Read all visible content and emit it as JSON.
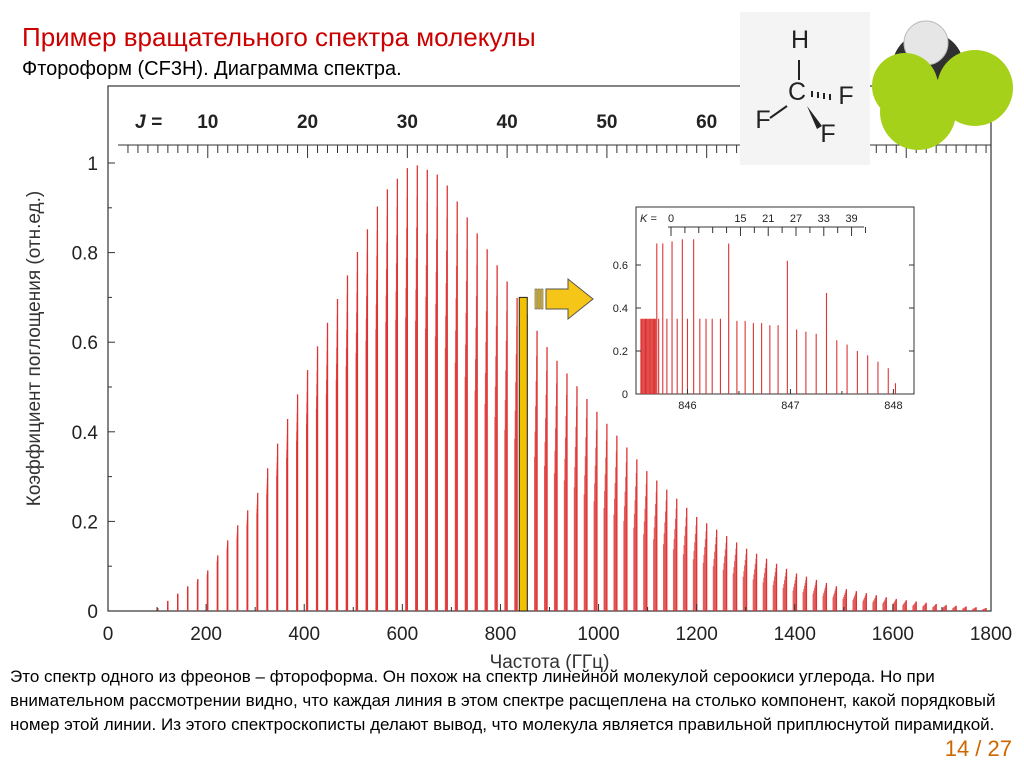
{
  "slide": {
    "title": "Пример вращательного спектра молекулы",
    "subtitle": "Фтороформ (CF3H).  Диаграмма спектра.",
    "caption": "Это спектр одного из фреонов – фтороформа. Он похож на спектр линейной молекулой сероокиси углерода. Но при внимательном рассмотрении видно, что каждая линия в этом спектре расщеплена на столько компонент, какой порядковый номер этой линии. Из этого спектроскописты делают вывод, что молекула является правильной приплюснутой пирамидкой.",
    "page_number": "14 / 27"
  },
  "molecule": {
    "atoms": [
      "H",
      "C",
      "F",
      "F",
      "F"
    ],
    "colors": {
      "fluorine": "#a6d11a",
      "hydrogen": "#e6e6e6",
      "carbon": "#303030"
    }
  },
  "colors": {
    "line": "#dd3333",
    "highlight": "#f2c200",
    "arrow": "#f5c518"
  },
  "chart_data": [
    {
      "type": "bar",
      "xlabel": "Частота (ГГц)",
      "ylabel": "Коэффициент поглощения  (отн.ед.)",
      "xlim": [
        0,
        1800
      ],
      "ylim": [
        0,
        1
      ],
      "x_ticks": [
        "0",
        "200",
        "400",
        "600",
        "800",
        "1000",
        "1200",
        "1400",
        "1600",
        "1800"
      ],
      "y_ticks": [
        "0",
        "0.2",
        "0.4",
        "0.6",
        "0.8",
        "1"
      ],
      "top_axis": {
        "label": "J =",
        "ticks": [
          "10",
          "20",
          "30",
          "40",
          "50",
          "60"
        ],
        "values": [
          10,
          20,
          30,
          40,
          50,
          60
        ]
      },
      "line_spacing_ghz": 20.34,
      "envelope": [
        [
          100,
          0.005
        ],
        [
          200,
          0.085
        ],
        [
          300,
          0.25
        ],
        [
          400,
          0.52
        ],
        [
          500,
          0.78
        ],
        [
          560,
          0.93
        ],
        [
          620,
          1.0
        ],
        [
          680,
          0.97
        ],
        [
          800,
          0.76
        ],
        [
          900,
          0.58
        ],
        [
          1000,
          0.44
        ],
        [
          1100,
          0.31
        ],
        [
          1200,
          0.21
        ],
        [
          1300,
          0.14
        ],
        [
          1400,
          0.085
        ],
        [
          1500,
          0.05
        ],
        [
          1600,
          0.028
        ],
        [
          1700,
          0.014
        ],
        [
          1800,
          0.006
        ]
      ],
      "highlight_x": 846.5,
      "highlight_y": 0.7
    },
    {
      "type": "bar",
      "xlim": [
        845.5,
        848.2
      ],
      "ylim": [
        0,
        0.75
      ],
      "x_ticks": [
        "846",
        "847",
        "848"
      ],
      "y_ticks": [
        "0",
        "0.2",
        "0.4",
        "0.6"
      ],
      "top_axis": {
        "label": "K =",
        "ticks": [
          "0",
          "15",
          "21",
          "27",
          "33",
          "39"
        ],
        "values": [
          0,
          15,
          21,
          27,
          33,
          39
        ]
      },
      "lines": [
        [
          845.548,
          0.35
        ],
        [
          845.559,
          0.35
        ],
        [
          845.57,
          0.35
        ],
        [
          845.581,
          0.35
        ],
        [
          845.592,
          0.35
        ],
        [
          845.603,
          0.35
        ],
        [
          845.614,
          0.35
        ],
        [
          845.625,
          0.35
        ],
        [
          845.636,
          0.35
        ],
        [
          845.647,
          0.35
        ],
        [
          845.658,
          0.35
        ],
        [
          845.669,
          0.35
        ],
        [
          845.68,
          0.35
        ],
        [
          845.691,
          0.35
        ],
        [
          845.702,
          0.7
        ],
        [
          845.72,
          0.35
        ],
        [
          845.76,
          0.7
        ],
        [
          845.8,
          0.35
        ],
        [
          845.85,
          0.71
        ],
        [
          845.9,
          0.35
        ],
        [
          845.95,
          0.72
        ],
        [
          846.0,
          0.35
        ],
        [
          846.06,
          0.72
        ],
        [
          846.12,
          0.35
        ],
        [
          846.18,
          0.35
        ],
        [
          846.24,
          0.35
        ],
        [
          846.32,
          0.35
        ],
        [
          846.4,
          0.7
        ],
        [
          846.48,
          0.34
        ],
        [
          846.56,
          0.34
        ],
        [
          846.64,
          0.33
        ],
        [
          846.72,
          0.33
        ],
        [
          846.8,
          0.32
        ],
        [
          846.88,
          0.32
        ],
        [
          846.97,
          0.62
        ],
        [
          847.06,
          0.3
        ],
        [
          847.15,
          0.29
        ],
        [
          847.25,
          0.28
        ],
        [
          847.35,
          0.47
        ],
        [
          847.45,
          0.25
        ],
        [
          847.55,
          0.23
        ],
        [
          847.65,
          0.2
        ],
        [
          847.75,
          0.18
        ],
        [
          847.85,
          0.15
        ],
        [
          847.95,
          0.12
        ],
        [
          848.02,
          0.05
        ]
      ]
    }
  ]
}
